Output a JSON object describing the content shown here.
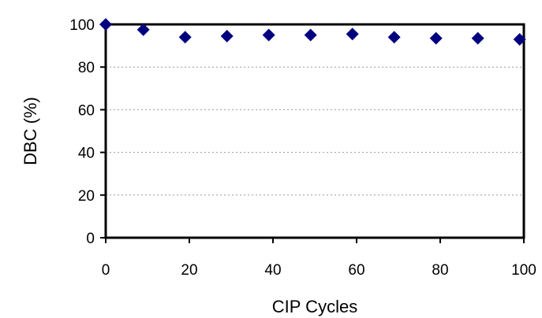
{
  "chart_data": {
    "type": "scatter",
    "xlabel": "CIP Cycles",
    "ylabel": "DBC (%)",
    "xlim": [
      0,
      100
    ],
    "ylim": [
      0,
      100
    ],
    "x_ticks": [
      0,
      20,
      40,
      60,
      80,
      100
    ],
    "y_ticks": [
      0,
      20,
      40,
      60,
      80,
      100
    ],
    "x_tick_labels": [
      "0",
      "20",
      "40",
      "60",
      "80",
      "100"
    ],
    "y_tick_labels": [
      "0",
      "20",
      "40",
      "60",
      "80",
      "100"
    ],
    "grid": "horizontal-dotted",
    "marker": "diamond",
    "series": [
      {
        "color": "#00007f",
        "points": [
          {
            "x": 0,
            "y": 100
          },
          {
            "x": 9,
            "y": 97.5
          },
          {
            "x": 19,
            "y": 94
          },
          {
            "x": 29,
            "y": 94.5
          },
          {
            "x": 39,
            "y": 95
          },
          {
            "x": 49,
            "y": 95
          },
          {
            "x": 59,
            "y": 95.5
          },
          {
            "x": 69,
            "y": 94
          },
          {
            "x": 79,
            "y": 93.5
          },
          {
            "x": 89,
            "y": 93.5
          },
          {
            "x": 99,
            "y": 93
          }
        ]
      }
    ]
  }
}
